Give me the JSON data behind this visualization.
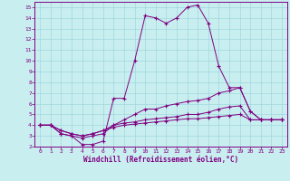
{
  "xlabel": "Windchill (Refroidissement éolien,°C)",
  "bg_color": "#c8eef0",
  "grid_color": "#a0d8dc",
  "line_color": "#800080",
  "xlim": [
    -0.5,
    23.5
  ],
  "ylim": [
    2,
    15.5
  ],
  "xticks": [
    0,
    1,
    2,
    3,
    4,
    5,
    6,
    7,
    8,
    9,
    10,
    11,
    12,
    13,
    14,
    15,
    16,
    17,
    18,
    19,
    20,
    21,
    22,
    23
  ],
  "yticks": [
    2,
    3,
    4,
    5,
    6,
    7,
    8,
    9,
    10,
    11,
    12,
    13,
    14,
    15
  ],
  "lines": [
    {
      "x": [
        0,
        1,
        2,
        3,
        4,
        5,
        6,
        7,
        8,
        9,
        10,
        11,
        12,
        13,
        14,
        15,
        16,
        17,
        18,
        19,
        20,
        21,
        22,
        23
      ],
      "y": [
        4,
        4,
        3.2,
        3.0,
        2.2,
        2.2,
        2.5,
        6.5,
        6.5,
        10,
        14.2,
        14,
        13.5,
        14,
        15,
        15.2,
        13.5,
        9.5,
        7.5,
        7.5,
        5.3,
        4.5,
        4.5,
        4.5
      ]
    },
    {
      "x": [
        0,
        1,
        2,
        3,
        4,
        5,
        6,
        7,
        8,
        9,
        10,
        11,
        12,
        13,
        14,
        15,
        16,
        17,
        18,
        19,
        20,
        21,
        22,
        23
      ],
      "y": [
        4,
        4,
        3.2,
        3.0,
        2.8,
        3.0,
        3.2,
        4.0,
        4.5,
        5.0,
        5.5,
        5.5,
        5.8,
        6.0,
        6.2,
        6.3,
        6.5,
        7.0,
        7.2,
        7.5,
        5.3,
        4.5,
        4.5,
        4.5
      ]
    },
    {
      "x": [
        0,
        1,
        2,
        3,
        4,
        5,
        6,
        7,
        8,
        9,
        10,
        11,
        12,
        13,
        14,
        15,
        16,
        17,
        18,
        19,
        20,
        21,
        22,
        23
      ],
      "y": [
        4,
        4,
        3.5,
        3.2,
        3.0,
        3.2,
        3.5,
        4.0,
        4.2,
        4.3,
        4.5,
        4.6,
        4.7,
        4.8,
        5.0,
        5.0,
        5.2,
        5.5,
        5.7,
        5.8,
        4.5,
        4.5,
        4.5,
        4.5
      ]
    },
    {
      "x": [
        0,
        1,
        2,
        3,
        4,
        5,
        6,
        7,
        8,
        9,
        10,
        11,
        12,
        13,
        14,
        15,
        16,
        17,
        18,
        19,
        20,
        21,
        22,
        23
      ],
      "y": [
        4,
        4,
        3.5,
        3.2,
        3.0,
        3.2,
        3.5,
        3.8,
        4.0,
        4.1,
        4.2,
        4.3,
        4.4,
        4.5,
        4.6,
        4.6,
        4.7,
        4.8,
        4.9,
        5.0,
        4.5,
        4.5,
        4.5,
        4.5
      ]
    }
  ]
}
